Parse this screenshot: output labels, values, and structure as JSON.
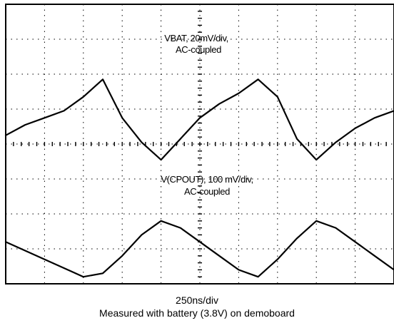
{
  "chart_data": {
    "type": "line",
    "title": "",
    "xlabel": "250ns/div",
    "caption": "Measured with battery (3.8V) on demoboard",
    "grid": true,
    "divisions": {
      "x": 10,
      "y": 8
    },
    "series": [
      {
        "name": "VBAT, 20mV/div, AC-coupled",
        "label_lines": [
          "VBAT, 20mV/div,",
          "AC-coupled"
        ],
        "units": "mV",
        "volts_per_div": 20,
        "x_div": [
          0,
          0.5,
          1.0,
          1.5,
          2.0,
          2.5,
          3.0,
          3.5,
          4.0,
          4.5,
          5.0,
          5.5,
          6.0,
          6.5,
          7.0,
          7.5,
          8.0,
          8.5,
          9.0,
          9.5,
          10.0
        ],
        "y": [
          -20,
          -14,
          -10,
          -6,
          2,
          12,
          -10,
          -24,
          -34,
          -22,
          -10,
          -2,
          4,
          12,
          2,
          -22,
          -34,
          -24,
          -16,
          -10,
          -6
        ]
      },
      {
        "name": "V(CPOUT), 100 mV/div, AC-coupled",
        "label_lines": [
          "V(CPOUT), 100 mV/div,",
          "AC-coupled"
        ],
        "units": "mV",
        "volts_per_div": 100,
        "x_div": [
          0,
          1.0,
          2.0,
          2.5,
          3.0,
          3.5,
          4.0,
          4.5,
          5.0,
          5.5,
          6.0,
          6.5,
          7.0,
          7.5,
          8.0,
          8.5,
          9.0,
          9.5,
          10.0
        ],
        "y": [
          20,
          -30,
          -80,
          -70,
          -20,
          40,
          80,
          60,
          20,
          -20,
          -60,
          -80,
          -30,
          30,
          80,
          60,
          20,
          -20,
          -60
        ]
      }
    ]
  }
}
